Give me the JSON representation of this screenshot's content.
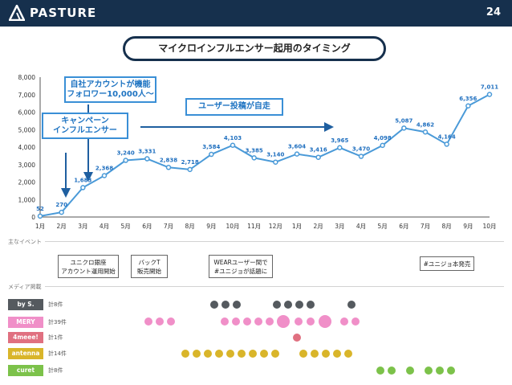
{
  "header": {
    "brand": "PASTURE",
    "page_number": "24"
  },
  "title": "マイクロインフルエンサー起用のタイミング",
  "callouts": {
    "own_account": "自社アカウントが機能\nフォロワー10,000人〜",
    "campaign": "キャンペーン\nインフルエンサー",
    "ugc": "ユーザー投稿が自走"
  },
  "chart_data": {
    "type": "line",
    "categories": [
      "1月",
      "2月",
      "3月",
      "4月",
      "5月",
      "6月",
      "7月",
      "8月",
      "9月",
      "10月",
      "11月",
      "12月",
      "1月",
      "2月",
      "3月",
      "4月",
      "5月",
      "6月",
      "7月",
      "8月",
      "9月",
      "10月"
    ],
    "series": [
      {
        "values": [
          52,
          270,
          1683,
          2368,
          3240,
          3331,
          2838,
          2718,
          3584,
          4103,
          3385,
          3140,
          3604,
          3416,
          3965,
          3470,
          4098,
          5087,
          4862,
          4164,
          6356,
          7011
        ]
      }
    ],
    "data_labels": [
      "52",
      "270",
      "1,683",
      "2,368",
      "3,240",
      "3,331",
      "2,838",
      "2,718",
      "3,584",
      "4,103",
      "3,385",
      "3,140",
      "3,604",
      "3,416",
      "3,965",
      "3,470",
      "4,098",
      "5,087",
      "4,862",
      "4,164",
      "6,356",
      "7,011"
    ],
    "y_ticks": [
      "0",
      "1,000",
      "2,000",
      "3,000",
      "4,000",
      "5,000",
      "6,000",
      "7,000",
      "8,000"
    ],
    "ylim": [
      0,
      8000
    ],
    "grid": false,
    "color": "#4a9ad8"
  },
  "events_section": {
    "label": "主なイベント",
    "events": [
      {
        "text": "ユニクロ銀座\nアカウント運用開始"
      },
      {
        "text": "バックT\n販売開始"
      },
      {
        "text": "WEARユーザー間で\n#ユニジョが話題に"
      },
      {
        "text": "#ユニジョ本発売"
      }
    ]
  },
  "media_section": {
    "label": "メディア掲載",
    "rows": [
      {
        "name": "by S.",
        "count": "計8件",
        "color": "#555a5f"
      },
      {
        "name": "MERY",
        "count": "計39件",
        "color": "#f08fc8"
      },
      {
        "name": "4meee!",
        "count": "計1件",
        "color": "#e07080"
      },
      {
        "name": "antenna",
        "count": "計14件",
        "color": "#d9b52a"
      },
      {
        "name": "curet",
        "count": "計8件",
        "color": "#7cc24a"
      }
    ]
  }
}
